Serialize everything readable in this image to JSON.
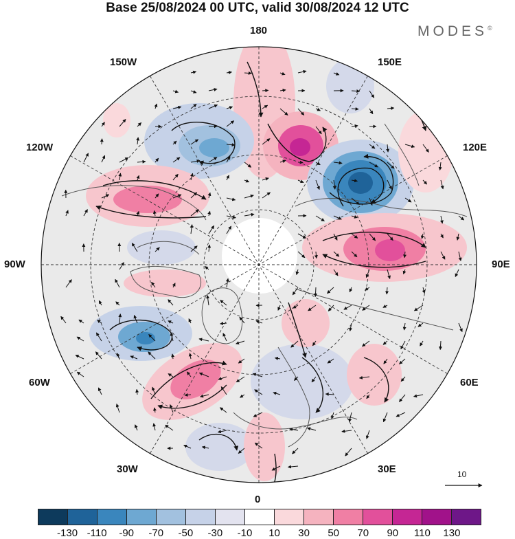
{
  "title": "Base 25/08/2024 00 UTC, valid 30/08/2024 12 UTC",
  "brand": "MODES",
  "brand_mark": "©",
  "longitude_labels": {
    "top": "180",
    "bottom": "0",
    "left": "90W",
    "right": "90E",
    "upper_left": "150W",
    "upper_right": "150E",
    "left_upper": "120W",
    "right_upper": "120E",
    "left_lower": "60W",
    "right_lower": "60E",
    "lower_left": "30W",
    "lower_right": "30E"
  },
  "reference_vector": {
    "value": "10"
  },
  "colorbar": {
    "colors": [
      "#0d3a5c",
      "#1f6399",
      "#3a86bd",
      "#6ea8d2",
      "#a2c1df",
      "#c6d2e8",
      "#e3e3ef",
      "#ffffff",
      "#fad9dc",
      "#f5b3bf",
      "#f07fa4",
      "#e2509b",
      "#c52694",
      "#a1128a",
      "#6e1788"
    ],
    "ticks": [
      "-130",
      "-110",
      "-90",
      "-70",
      "-50",
      "-30",
      "-10",
      "10",
      "30",
      "50",
      "70",
      "90",
      "110",
      "130"
    ]
  },
  "colors": {
    "background_field": "#eaeaea",
    "coastline": "#555555",
    "graticule": "#333333",
    "arrow": "#111111"
  }
}
